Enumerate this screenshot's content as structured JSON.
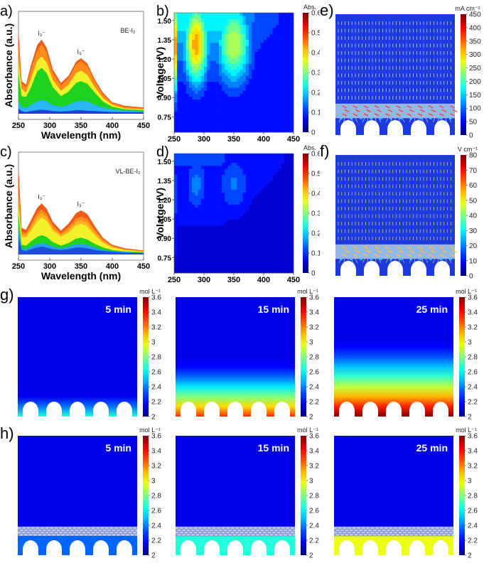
{
  "chart_data": [
    {
      "id": "a",
      "panel_label": "a)",
      "type": "area",
      "title": "",
      "annotation": "BE-I₂",
      "peak_labels": [
        {
          "text": "I₃⁻",
          "x": 287
        },
        {
          "text": "I₃⁻",
          "x": 350
        }
      ],
      "xlabel": "Wavelength (nm)",
      "ylabel": "Absorbance (a.u.)",
      "xlim": [
        250,
        450
      ],
      "xticks": [
        "250",
        "300",
        "350",
        "400",
        "450"
      ],
      "ylim": [
        0,
        1
      ],
      "y_ticks_shown": false,
      "x": [
        250,
        255,
        262,
        270,
        280,
        287,
        295,
        305,
        318,
        330,
        342,
        350,
        360,
        372,
        385,
        400,
        420,
        450
      ],
      "series": [
        {
          "name": "curve-1",
          "color": "#1f3fd8",
          "values": [
            0.06,
            0.03,
            0.02,
            0.03,
            0.04,
            0.045,
            0.04,
            0.03,
            0.025,
            0.03,
            0.04,
            0.04,
            0.035,
            0.03,
            0.025,
            0.02,
            0.018,
            0.015
          ]
        },
        {
          "name": "curve-2",
          "color": "#29b6f6",
          "values": [
            0.14,
            0.08,
            0.07,
            0.1,
            0.14,
            0.16,
            0.14,
            0.1,
            0.08,
            0.1,
            0.14,
            0.15,
            0.14,
            0.1,
            0.07,
            0.05,
            0.035,
            0.025
          ]
        },
        {
          "name": "curve-3",
          "color": "#1ed21e",
          "values": [
            0.45,
            0.2,
            0.19,
            0.3,
            0.48,
            0.52,
            0.46,
            0.3,
            0.2,
            0.25,
            0.35,
            0.37,
            0.34,
            0.24,
            0.14,
            0.08,
            0.05,
            0.04
          ]
        },
        {
          "name": "curve-4",
          "color": "#f2f02a",
          "values": [
            0.6,
            0.28,
            0.24,
            0.4,
            0.6,
            0.65,
            0.58,
            0.38,
            0.26,
            0.33,
            0.46,
            0.49,
            0.44,
            0.3,
            0.18,
            0.1,
            0.06,
            0.05
          ]
        },
        {
          "name": "curve-5",
          "color": "#ff8c1a",
          "values": [
            0.8,
            0.34,
            0.3,
            0.5,
            0.72,
            0.79,
            0.7,
            0.46,
            0.32,
            0.4,
            0.56,
            0.6,
            0.54,
            0.37,
            0.22,
            0.12,
            0.08,
            0.06
          ]
        },
        {
          "name": "curve-6",
          "color": "#ef5a1a",
          "values": [
            0.95,
            0.37,
            0.33,
            0.55,
            0.78,
            0.84,
            0.75,
            0.5,
            0.35,
            0.43,
            0.59,
            0.63,
            0.57,
            0.39,
            0.24,
            0.13,
            0.09,
            0.07
          ]
        }
      ]
    },
    {
      "id": "b",
      "panel_label": "b)",
      "type": "heatmap",
      "xlabel": "Wavelength (nm)",
      "ylabel": "Voltage (V)",
      "xlim": [
        250,
        450
      ],
      "xticks": [
        "250",
        "300",
        "350",
        "400",
        "450"
      ],
      "ylim": [
        0.63,
        1.56
      ],
      "yticks": [
        "0.75",
        "0.90",
        "1.05",
        "1.20",
        "1.35",
        "1.50"
      ],
      "colorbar": {
        "title": "Abs.",
        "range": [
          0,
          0.6
        ],
        "ticks": [
          "0",
          "0.1",
          "0.2",
          "0.3",
          "0.4",
          "0.5",
          "0.6"
        ]
      },
      "hotspots": [
        {
          "x": 250,
          "y": 1.3,
          "value": 0.58,
          "sx": 3,
          "sy": 0.25
        },
        {
          "x": 287,
          "y": 1.32,
          "value": 0.42,
          "sx": 14,
          "sy": 0.22
        },
        {
          "x": 350,
          "y": 1.32,
          "value": 0.32,
          "sx": 20,
          "sy": 0.22
        }
      ],
      "baseline": {
        "low_y": 0.65,
        "high_y": 1.5,
        "value_low": 0.02,
        "value_high": 0.2
      }
    },
    {
      "id": "c",
      "panel_label": "c)",
      "type": "area",
      "annotation": "VL-BE-I₂",
      "peak_labels": [
        {
          "text": "I₃⁻",
          "x": 287
        },
        {
          "text": "I₃⁻",
          "x": 350
        }
      ],
      "xlabel": "Wavelength (nm)",
      "ylabel": "Absorbance (a.u.)",
      "xlim": [
        250,
        450
      ],
      "xticks": [
        "250",
        "300",
        "350",
        "400",
        "450"
      ],
      "ylim": [
        0,
        1
      ],
      "y_ticks_shown": false,
      "x": [
        250,
        255,
        262,
        270,
        280,
        287,
        295,
        305,
        318,
        330,
        342,
        350,
        360,
        372,
        385,
        400,
        420,
        450
      ],
      "series": [
        {
          "name": "curve-1",
          "color": "#1f4fd8",
          "values": [
            0.2,
            0.05,
            0.04,
            0.06,
            0.08,
            0.09,
            0.08,
            0.06,
            0.05,
            0.06,
            0.08,
            0.08,
            0.07,
            0.05,
            0.04,
            0.03,
            0.02,
            0.015
          ]
        },
        {
          "name": "curve-2",
          "color": "#2aa0f0",
          "values": [
            0.3,
            0.07,
            0.06,
            0.09,
            0.12,
            0.13,
            0.12,
            0.09,
            0.07,
            0.09,
            0.12,
            0.12,
            0.11,
            0.08,
            0.05,
            0.04,
            0.03,
            0.02
          ]
        },
        {
          "name": "curve-3",
          "color": "#1ed21e",
          "values": [
            0.45,
            0.11,
            0.1,
            0.15,
            0.2,
            0.22,
            0.2,
            0.14,
            0.1,
            0.13,
            0.18,
            0.19,
            0.17,
            0.12,
            0.08,
            0.05,
            0.035,
            0.025
          ]
        },
        {
          "name": "curve-4",
          "color": "#f2f02a",
          "values": [
            0.55,
            0.2,
            0.19,
            0.27,
            0.38,
            0.42,
            0.38,
            0.27,
            0.2,
            0.25,
            0.33,
            0.35,
            0.32,
            0.22,
            0.13,
            0.08,
            0.05,
            0.03
          ]
        },
        {
          "name": "curve-5",
          "color": "#ffb020",
          "values": [
            0.65,
            0.23,
            0.22,
            0.31,
            0.43,
            0.47,
            0.42,
            0.3,
            0.22,
            0.28,
            0.37,
            0.39,
            0.36,
            0.25,
            0.15,
            0.09,
            0.055,
            0.035
          ]
        },
        {
          "name": "curve-6",
          "color": "#ff8c1a",
          "values": [
            0.75,
            0.26,
            0.24,
            0.34,
            0.47,
            0.51,
            0.46,
            0.33,
            0.24,
            0.31,
            0.41,
            0.43,
            0.4,
            0.28,
            0.17,
            0.1,
            0.06,
            0.04
          ]
        },
        {
          "name": "curve-7",
          "color": "#ef5a1a",
          "values": [
            1.0,
            0.3,
            0.28,
            0.39,
            0.53,
            0.58,
            0.52,
            0.37,
            0.27,
            0.35,
            0.47,
            0.5,
            0.46,
            0.32,
            0.19,
            0.11,
            0.07,
            0.045
          ]
        }
      ]
    },
    {
      "id": "d",
      "panel_label": "d)",
      "type": "heatmap",
      "xlabel": "Wavelength (nm)",
      "ylabel": "Volatge (V)",
      "xlim": [
        250,
        450
      ],
      "xticks": [
        "250",
        "300",
        "350",
        "400",
        "450"
      ],
      "ylim": [
        0.63,
        1.56
      ],
      "yticks": [
        "0.75",
        "0.90",
        "1.05",
        "1.20",
        "1.35",
        "1.50"
      ],
      "colorbar": {
        "title": "Abs.",
        "range": [
          0,
          0.6
        ],
        "ticks": [
          "0",
          "0.1",
          "0.2",
          "0.3",
          "0.4",
          "0.5",
          "0.6"
        ]
      },
      "hotspots": [
        {
          "x": 250,
          "y": 1.25,
          "value": 0.14,
          "sx": 2,
          "sy": 0.3
        },
        {
          "x": 287,
          "y": 1.32,
          "value": 0.11,
          "sx": 12,
          "sy": 0.15
        },
        {
          "x": 350,
          "y": 1.32,
          "value": 0.1,
          "sx": 18,
          "sy": 0.15
        }
      ],
      "baseline": {
        "low_y": 0.65,
        "high_y": 1.5,
        "value_low": 0.01,
        "value_high": 0.06
      }
    },
    {
      "id": "e",
      "panel_label": "e)",
      "type": "heatmap",
      "description": "Simulated current density field with arrows",
      "colorbar": {
        "title": "mA cm⁻²",
        "range": [
          0,
          450
        ],
        "ticks": [
          "0",
          "50",
          "100",
          "150",
          "200",
          "250",
          "300",
          "350",
          "400",
          "450"
        ]
      },
      "has_layer": true,
      "layer_style": "hot"
    },
    {
      "id": "f",
      "panel_label": "f)",
      "type": "heatmap",
      "description": "Simulated electric field with arrows",
      "colorbar": {
        "title": "V cm⁻¹",
        "range": [
          0,
          80
        ],
        "ticks": [
          "0",
          "10",
          "20",
          "30",
          "40",
          "50",
          "60",
          "70",
          "80"
        ]
      },
      "has_layer": true,
      "layer_style": "cool"
    },
    {
      "id": "g",
      "panel_label": "g)",
      "type": "heatmap",
      "description": "Concentration distribution over time without layer",
      "colorbar": {
        "title": "mol L⁻¹",
        "range": [
          2,
          3.6
        ],
        "ticks": [
          "2",
          "2.2",
          "2.4",
          "2.6",
          "2.8",
          "3",
          "3.2",
          "3.4",
          "3.6"
        ]
      },
      "frames": [
        {
          "time": "5 min",
          "bottom_value": 2.55,
          "depth": 0.18
        },
        {
          "time": "15 min",
          "bottom_value": 3.3,
          "depth": 0.45
        },
        {
          "time": "25 min",
          "bottom_value": 3.6,
          "depth": 0.62
        }
      ]
    },
    {
      "id": "h",
      "panel_label": "h)",
      "type": "heatmap",
      "description": "Concentration distribution over time with layer",
      "colorbar": {
        "title": "mol L⁻¹",
        "range": [
          2,
          3.6
        ],
        "ticks": [
          "2",
          "2.2",
          "2.4",
          "2.6",
          "2.8",
          "3",
          "3.2",
          "3.4",
          "3.6"
        ]
      },
      "frames": [
        {
          "time": "5 min",
          "bottom_value": 2.22
        },
        {
          "time": "15 min",
          "bottom_value": 2.55
        },
        {
          "time": "25 min",
          "bottom_value": 2.9
        }
      ]
    }
  ]
}
